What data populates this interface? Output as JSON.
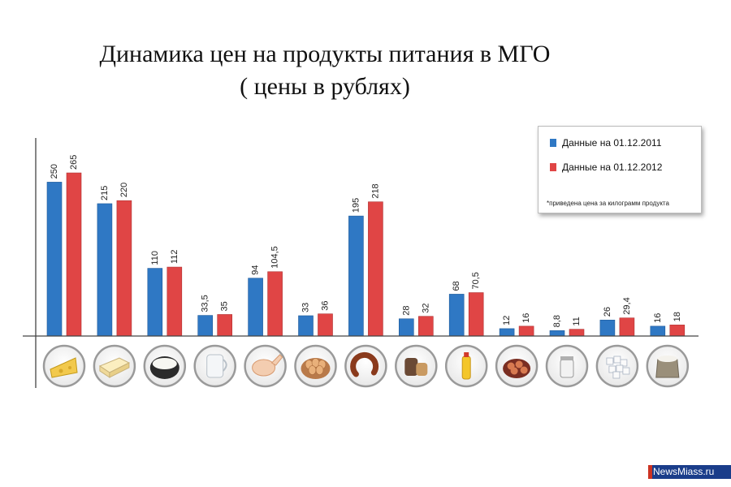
{
  "title_line1": "Динамика цен на продукты питания в МГО",
  "title_line2": "( цены в рублях)",
  "legend": {
    "series1": "Данные на 01.12.2011",
    "series2": "Данные на 01.12.2012",
    "note": "*приведена цена за килограмм продукта"
  },
  "badge": "NewsMiass.ru",
  "colors": {
    "s1": "#2f78c4",
    "s2": "#e04545"
  },
  "chart_data": {
    "type": "bar",
    "title": "Динамика цен на продукты питания в МГО ( цены в рублях)",
    "xlabel": "",
    "ylabel": "",
    "ylim": [
      0,
      290
    ],
    "categories": [
      "cheese",
      "butter",
      "sour-cream",
      "milk",
      "chicken",
      "eggs",
      "sausage",
      "bread",
      "oil",
      "potatoes",
      "salt",
      "sugar",
      "flour"
    ],
    "series": [
      {
        "name": "Данные на 01.12.2011",
        "values": [
          250,
          215,
          110,
          33.5,
          94,
          33,
          195,
          28,
          68,
          12,
          8.8,
          26,
          16
        ],
        "labels": [
          "250",
          "215",
          "110",
          "33,5",
          "94",
          "33",
          "195",
          "28",
          "68",
          "12",
          "8,8",
          "26",
          "16"
        ]
      },
      {
        "name": "Данные на 01.12.2012",
        "values": [
          265,
          220,
          112,
          35,
          104.5,
          36,
          218,
          32,
          70.5,
          16,
          11,
          29.4,
          18
        ],
        "labels": [
          "265",
          "220",
          "112",
          "35",
          "104,5",
          "36",
          "218",
          "32",
          "70,5",
          "16",
          "11",
          "29,4",
          "18"
        ]
      }
    ]
  }
}
